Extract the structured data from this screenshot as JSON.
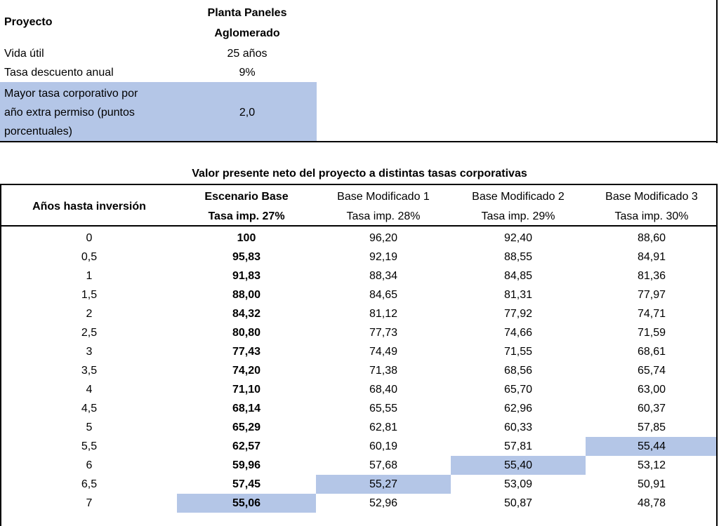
{
  "project": {
    "label": "Proyecto",
    "name_line1": "Planta Paneles",
    "name_line2": "Aglomerado",
    "life_label": "Vida útil",
    "life_value": "25 años",
    "discount_label": "Tasa descuento anual",
    "discount_value": "9%",
    "extra_label_line1": "Mayor tasa corporativo por",
    "extra_label_line2": "año extra permiso (puntos",
    "extra_label_line3": "porcentuales)",
    "extra_value": "2,0"
  },
  "table": {
    "title": "Valor presente neto del proyecto a distintas tasas corporativas",
    "col0_header": "Años hasta inversión",
    "columns": [
      {
        "name": "Escenario Base",
        "rate": "Tasa imp. 27%"
      },
      {
        "name": "Base Modificado 1",
        "rate": "Tasa imp. 28%"
      },
      {
        "name": "Base Modificado 2",
        "rate": "Tasa imp. 29%"
      },
      {
        "name": "Base Modificado 3",
        "rate": "Tasa imp. 30%"
      }
    ],
    "rows": [
      [
        "0",
        "100",
        "96,20",
        "92,40",
        "88,60"
      ],
      [
        "0,5",
        "95,83",
        "92,19",
        "88,55",
        "84,91"
      ],
      [
        "1",
        "91,83",
        "88,34",
        "84,85",
        "81,36"
      ],
      [
        "1,5",
        "88,00",
        "84,65",
        "81,31",
        "77,97"
      ],
      [
        "2",
        "84,32",
        "81,12",
        "77,92",
        "74,71"
      ],
      [
        "2,5",
        "80,80",
        "77,73",
        "74,66",
        "71,59"
      ],
      [
        "3",
        "77,43",
        "74,49",
        "71,55",
        "68,61"
      ],
      [
        "3,5",
        "74,20",
        "71,38",
        "68,56",
        "65,74"
      ],
      [
        "4",
        "71,10",
        "68,40",
        "65,70",
        "63,00"
      ],
      [
        "4,5",
        "68,14",
        "65,55",
        "62,96",
        "60,37"
      ],
      [
        "5",
        "65,29",
        "62,81",
        "60,33",
        "57,85"
      ],
      [
        "5,5",
        "62,57",
        "60,19",
        "57,81",
        "55,44"
      ],
      [
        "6",
        "59,96",
        "57,68",
        "55,40",
        "53,12"
      ],
      [
        "6,5",
        "57,45",
        "55,27",
        "53,09",
        "50,91"
      ],
      [
        "7",
        "55,06",
        "52,96",
        "50,87",
        "48,78"
      ]
    ],
    "highlighted_cells": [
      [
        14,
        1
      ],
      [
        13,
        2
      ],
      [
        12,
        3
      ],
      [
        11,
        4
      ]
    ],
    "highlight_color": "#b4c6e7"
  }
}
